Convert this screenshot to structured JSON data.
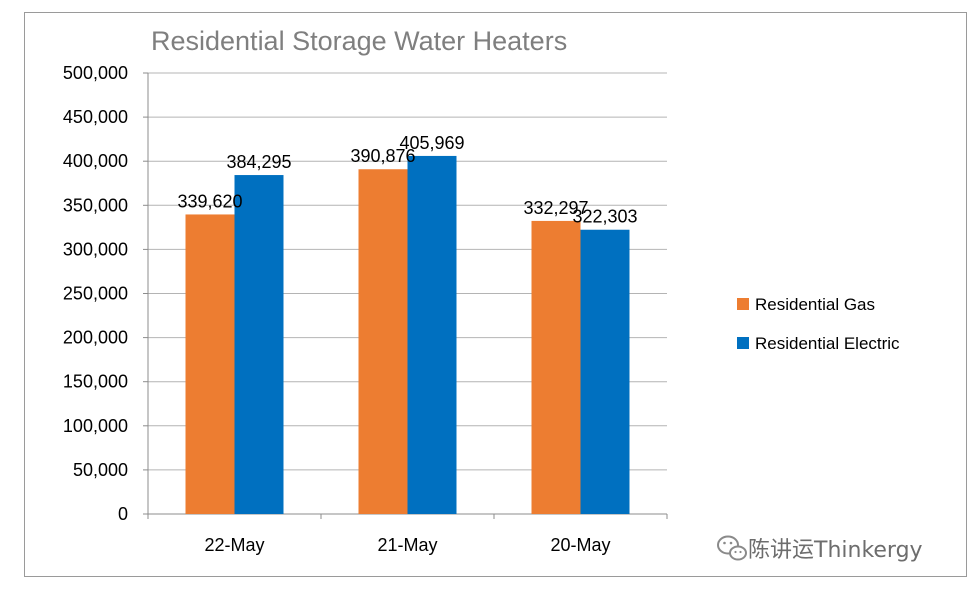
{
  "chart_data": {
    "type": "bar",
    "title": "Residential Storage Water Heaters",
    "categories": [
      "22-May",
      "21-May",
      "20-May"
    ],
    "series": [
      {
        "name": "Residential Gas",
        "values": [
          339620,
          390876,
          332297
        ],
        "labels": [
          "339,620",
          "390,876",
          "332,297"
        ]
      },
      {
        "name": "Residential Electric",
        "values": [
          384295,
          405969,
          322303
        ],
        "labels": [
          "384,295",
          "405,969",
          "322,303"
        ]
      }
    ],
    "ylim": [
      0,
      500000
    ],
    "yticks": [
      0,
      50000,
      100000,
      150000,
      200000,
      250000,
      300000,
      350000,
      400000,
      450000,
      500000
    ],
    "ytick_labels": [
      "0",
      "50,000",
      "100,000",
      "150,000",
      "200,000",
      "250,000",
      "300,000",
      "350,000",
      "400,000",
      "450,000",
      "500,000"
    ],
    "grid": true,
    "legend_position": "right",
    "colors": [
      "#ED7D31",
      "#0070C0"
    ]
  },
  "watermark": {
    "text": "陈讲运Thinkergy",
    "icon": "wechat-icon"
  }
}
